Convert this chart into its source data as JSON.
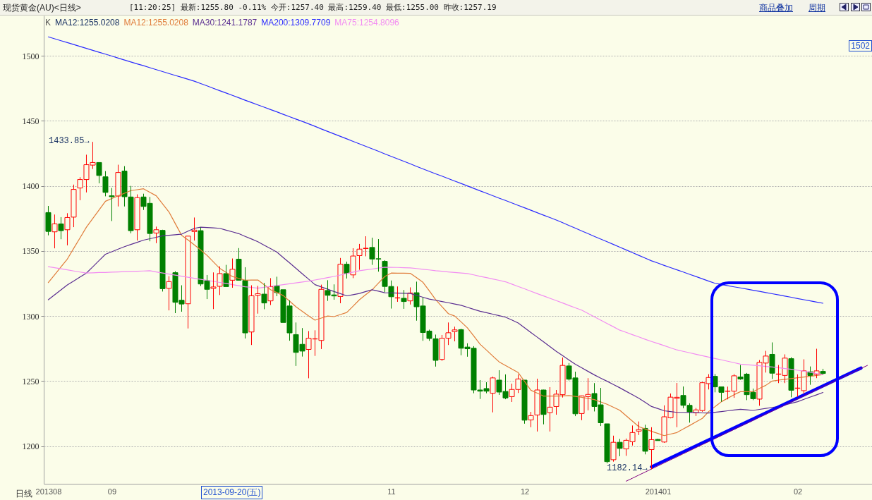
{
  "chart_data": {
    "type": "candlestick",
    "title": "现货黄金(AU)<日线>",
    "subtitle": "[11:20:25] 最新:1255.80 -0.11% 今开:1257.40 最高:1259.40 最低:1255.00 昨收:1257.19",
    "categories": [
      "201308",
      null,
      null,
      null,
      null,
      null,
      null,
      null,
      null,
      null,
      "09",
      null,
      null,
      null,
      null,
      null,
      null,
      null,
      null,
      null,
      null,
      null,
      null,
      null,
      null,
      null,
      null,
      null,
      null,
      null,
      null,
      null,
      null,
      null,
      null,
      null,
      null,
      null,
      null,
      null,
      null,
      null,
      null,
      null,
      null,
      null,
      null,
      null,
      null,
      null,
      null,
      null,
      null,
      null,
      "11",
      null,
      null,
      null,
      null,
      null,
      null,
      null,
      null,
      null,
      null,
      null,
      null,
      null,
      null,
      null,
      null,
      null,
      null,
      null,
      null,
      "12",
      null,
      null,
      null,
      null,
      null,
      null,
      null,
      null,
      null,
      null,
      null,
      null,
      null,
      null,
      null,
      null,
      null,
      null,
      null,
      null,
      "201401",
      null,
      null,
      null,
      null,
      null,
      null,
      null,
      null,
      null,
      null,
      null,
      null,
      null,
      null,
      null,
      null,
      null,
      null,
      null,
      null,
      null,
      "02",
      null,
      null,
      null,
      null,
      null,
      null,
      null,
      null,
      null,
      null,
      null
    ],
    "ohlc": [
      [
        1379.5,
        1384.6,
        1362,
        1365
      ],
      [
        1364.7,
        1378,
        1352,
        1370.8
      ],
      [
        1370.8,
        1376,
        1359,
        1365.6
      ],
      [
        1366.3,
        1379,
        1354.3,
        1375.7
      ],
      [
        1376,
        1401,
        1368.3,
        1397.3
      ],
      [
        1398.4,
        1406.7,
        1389,
        1404.9
      ],
      [
        1404.9,
        1424,
        1395,
        1416.3
      ],
      [
        1416,
        1433.85,
        1413,
        1418
      ],
      [
        1418,
        1418,
        1402,
        1408
      ],
      [
        1407,
        1411.4,
        1392,
        1395
      ],
      [
        1392.4,
        1398.4,
        1373,
        1391.7
      ],
      [
        1392.2,
        1416.3,
        1384.2,
        1410.3
      ],
      [
        1411.4,
        1415.2,
        1384.2,
        1391.7
      ],
      [
        1391.5,
        1400,
        1363.6,
        1365.6
      ],
      [
        1366.3,
        1393.5,
        1358,
        1391
      ],
      [
        1391.5,
        1394,
        1381.5,
        1384.2
      ],
      [
        1386.6,
        1391.5,
        1357.4,
        1363.4
      ],
      [
        1363.8,
        1368.7,
        1356,
        1366.3
      ],
      [
        1365.8,
        1366.3,
        1318.8,
        1321
      ],
      [
        1321.2,
        1330.6,
        1304.3,
        1326.4
      ],
      [
        1333.3,
        1334.4,
        1302.2,
        1310.5
      ],
      [
        1312.1,
        1323.6,
        1303.3,
        1309.2
      ],
      [
        1309.4,
        1361.4,
        1290.4,
        1361.4
      ],
      [
        1364.9,
        1375.7,
        1358,
        1366
      ],
      [
        1365.6,
        1368,
        1323,
        1324.6
      ],
      [
        1327.2,
        1331.5,
        1313,
        1320.5
      ],
      [
        1321.2,
        1333.5,
        1305.3,
        1322.3
      ],
      [
        1322.8,
        1338.2,
        1316.1,
        1332.6
      ],
      [
        1332.6,
        1339.3,
        1322.6,
        1322.6
      ],
      [
        1327.5,
        1344.2,
        1321.7,
        1335.9
      ],
      [
        1343.7,
        1352.2,
        1327.5,
        1327.5
      ],
      [
        1327.3,
        1337.5,
        1282.7,
        1287
      ],
      [
        1287.7,
        1323.6,
        1277.7,
        1315.5
      ],
      [
        1315.9,
        1323.2,
        1301.8,
        1317.1
      ],
      [
        1316.8,
        1325.4,
        1305.2,
        1310
      ],
      [
        1311.6,
        1329.1,
        1308.4,
        1322.5
      ],
      [
        1323.2,
        1330.2,
        1315.2,
        1318
      ],
      [
        1320.2,
        1320.2,
        1295,
        1295
      ],
      [
        1307.7,
        1312,
        1281,
        1287
      ],
      [
        1285.7,
        1295,
        1261.6,
        1272
      ],
      [
        1278.2,
        1290.7,
        1268.8,
        1273
      ],
      [
        1274.3,
        1288.4,
        1252.1,
        1282.9
      ],
      [
        1282.3,
        1289,
        1269.3,
        1282.5
      ],
      [
        1281.2,
        1324.1,
        1274.6,
        1320.5
      ],
      [
        1319.6,
        1327.5,
        1311.6,
        1315.9
      ],
      [
        1316.2,
        1324.3,
        1312.5,
        1315.4
      ],
      [
        1315,
        1344.6,
        1309.8,
        1339.8
      ],
      [
        1339.8,
        1341.8,
        1328.8,
        1332.9
      ],
      [
        1331.6,
        1352.1,
        1329.1,
        1346.1
      ],
      [
        1346.4,
        1355.4,
        1335.5,
        1351.4
      ],
      [
        1351.8,
        1361.3,
        1345.9,
        1352.1
      ],
      [
        1352.7,
        1360.2,
        1339.3,
        1343.8
      ],
      [
        1344,
        1359.1,
        1334.1,
        1343.8
      ],
      [
        1342,
        1342.9,
        1318.4,
        1322.7
      ],
      [
        1322.7,
        1327.3,
        1305.7,
        1314.8
      ],
      [
        1313.8,
        1322.7,
        1310.9,
        1314
      ],
      [
        1313.6,
        1320,
        1305.5,
        1311.1
      ],
      [
        1311.6,
        1322,
        1308.8,
        1317.7
      ],
      [
        1317.9,
        1326.4,
        1296.4,
        1307.1
      ],
      [
        1307.7,
        1314.3,
        1280.9,
        1287.3
      ],
      [
        1288.4,
        1289.5,
        1280.9,
        1282.7
      ],
      [
        1282.5,
        1285.7,
        1261.1,
        1265.9
      ],
      [
        1266.6,
        1285.4,
        1265.5,
        1282.9
      ],
      [
        1282.9,
        1295,
        1277.7,
        1287.1
      ],
      [
        1288,
        1291.8,
        1280.5,
        1289.3
      ],
      [
        1289.5,
        1290.2,
        1269.8,
        1275.2
      ],
      [
        1276.1,
        1279,
        1268.7,
        1274.8
      ],
      [
        1275.2,
        1276.8,
        1240.6,
        1243.1
      ],
      [
        1243.1,
        1250.7,
        1236.2,
        1242.2
      ],
      [
        1244.2,
        1249.1,
        1240.6,
        1242.2
      ],
      [
        1240.6,
        1253.4,
        1225.9,
        1252.4
      ],
      [
        1250.7,
        1258.3,
        1239.3,
        1241.5
      ],
      [
        1242,
        1255.1,
        1236,
        1237
      ],
      [
        1238,
        1248,
        1233.9,
        1243.5
      ],
      [
        1243.5,
        1255.1,
        1240.8,
        1251.6
      ],
      [
        1250.7,
        1250.7,
        1217.2,
        1219.9
      ],
      [
        1220.1,
        1226.3,
        1214.5,
        1223.4
      ],
      [
        1223.9,
        1251.8,
        1211.2,
        1243.1
      ],
      [
        1243.1,
        1243.3,
        1216.7,
        1224.3
      ],
      [
        1225.7,
        1245.3,
        1211.2,
        1229.9
      ],
      [
        1230.4,
        1243.1,
        1224.1,
        1239.9
      ],
      [
        1239.5,
        1268.1,
        1237.3,
        1262
      ],
      [
        1261.6,
        1263.8,
        1250.4,
        1251.4
      ],
      [
        1252.4,
        1257.2,
        1223,
        1224.8
      ],
      [
        1225,
        1238.8,
        1219.9,
        1238.6
      ],
      [
        1238,
        1252.2,
        1227.5,
        1239.7
      ],
      [
        1240.4,
        1248.4,
        1226.6,
        1230.4
      ],
      [
        1231.7,
        1244.7,
        1215.4,
        1217.9
      ],
      [
        1217.1,
        1217.1,
        1186.7,
        1188
      ],
      [
        1189.5,
        1208,
        1188,
        1202.9
      ],
      [
        1202.9,
        1205.5,
        1192.2,
        1198.2
      ],
      [
        1197.8,
        1205.8,
        1192.5,
        1204.4
      ],
      [
        1203.3,
        1215.8,
        1200.4,
        1210.4
      ],
      [
        1211.5,
        1218.9,
        1208.5,
        1212.7
      ],
      [
        1213.6,
        1216.4,
        1193.6,
        1196
      ],
      [
        1197.3,
        1214.5,
        1182.14,
        1204.9
      ],
      [
        1205.1,
        1205.6,
        1204.2,
        1204.2
      ],
      [
        1203.1,
        1231.3,
        1202.5,
        1222.5
      ],
      [
        1221.8,
        1240.4,
        1221.3,
        1237.6
      ],
      [
        1236.7,
        1248.5,
        1214.5,
        1237.5
      ],
      [
        1238.9,
        1245.8,
        1229.1,
        1231.3
      ],
      [
        1231.3,
        1232.9,
        1218,
        1226.2
      ],
      [
        1225.5,
        1229.3,
        1223.1,
        1227.8
      ],
      [
        1227.3,
        1249.3,
        1226.4,
        1248.7
      ],
      [
        1248,
        1255.3,
        1243.5,
        1252.7
      ],
      [
        1253.6,
        1255.4,
        1241.3,
        1245.5
      ],
      [
        1245.5,
        1245.5,
        1234.1,
        1241.3
      ],
      [
        1242.1,
        1245.7,
        1235.9,
        1242.3
      ],
      [
        1242.2,
        1255.3,
        1237.1,
        1254
      ],
      [
        1253.1,
        1262.3,
        1250.9,
        1251.6
      ],
      [
        1255.3,
        1256.2,
        1235.3,
        1239.5
      ],
      [
        1241.3,
        1244.2,
        1235.3,
        1236.4
      ],
      [
        1236.1,
        1266.1,
        1231,
        1264.3
      ],
      [
        1263.8,
        1273.2,
        1256.5,
        1269.2
      ],
      [
        1270.5,
        1279.7,
        1251.6,
        1256
      ],
      [
        1255.2,
        1262.3,
        1248.4,
        1255.4
      ],
      [
        1254.3,
        1270.5,
        1248.4,
        1267.6
      ],
      [
        1267.2,
        1268.3,
        1237.5,
        1242.9
      ],
      [
        1244.4,
        1255.1,
        1237.9,
        1244.6
      ],
      [
        1242.6,
        1266.7,
        1240.2,
        1257.8
      ],
      [
        1257.1,
        1261.2,
        1247.1,
        1254.2
      ],
      [
        1255.1,
        1274.8,
        1252.2,
        1257.8
      ],
      [
        1257.4,
        1259.4,
        1255,
        1255.8
      ],
      null,
      null,
      null,
      null,
      null,
      null,
      null
    ],
    "colors": [
      "#008000",
      "#ff0000",
      "#008000",
      "#ff0000",
      "#ff0000",
      "#ff0000",
      "#ff0000",
      "#ff0000",
      "#008000",
      "#008000",
      "#008000",
      "#ff0000",
      "#008000",
      "#008000",
      "#ff0000",
      "#008000",
      "#008000",
      "#ff0000",
      "#008000",
      "#ff0000",
      "#008000",
      "#008000",
      "#ff0000",
      "#ff0000",
      "#008000",
      "#008000",
      "#ff0000",
      "#ff0000",
      "#008000",
      "#ff0000",
      "#008000",
      "#008000",
      "#ff0000",
      "#ff0000",
      "#008000",
      "#ff0000",
      "#008000",
      "#008000",
      "#008000",
      "#008000",
      "#008000",
      "#ff0000",
      "#ff0000",
      "#ff0000",
      "#008000",
      "#008000",
      "#ff0000",
      "#008000",
      "#ff0000",
      "#ff0000",
      "#ff0000",
      "#008000",
      "#008000",
      "#008000",
      "#008000",
      "#ff0000",
      "#008000",
      "#ff0000",
      "#008000",
      "#008000",
      "#008000",
      "#008000",
      "#ff0000",
      "#ff0000",
      "#ff0000",
      "#008000",
      "#008000",
      "#008000",
      "#008000",
      "#008000",
      "#ff0000",
      "#008000",
      "#008000",
      "#ff0000",
      "#ff0000",
      "#008000",
      "#ff0000",
      "#ff0000",
      "#008000",
      "#ff0000",
      "#ff0000",
      "#ff0000",
      "#008000",
      "#008000",
      "#ff0000",
      "#ff0000",
      "#008000",
      "#008000",
      "#008000",
      "#ff0000",
      "#008000",
      "#ff0000",
      "#ff0000",
      "#ff0000",
      "#008000",
      "#ff0000",
      "#008000",
      "#ff0000",
      "#ff0000",
      "#ff0000",
      "#008000",
      "#008000",
      "#ff0000",
      "#ff0000",
      "#ff0000",
      "#008000",
      "#008000",
      "#ff0000",
      "#ff0000",
      "#008000",
      "#008000",
      "#008000",
      "#ff0000",
      "#ff0000",
      "#008000",
      "#ff0000",
      "#ff0000",
      "#008000",
      "#ff0000",
      "#ff0000",
      "#008000",
      "#ff0000",
      "#008000",
      null,
      null,
      null,
      null,
      null,
      null,
      null
    ],
    "series": [
      {
        "type": "line",
        "name": "MA12:1255.0208",
        "color": "#e07b39",
        "values": [
          1325.7,
          1331.7,
          1337.8,
          1343.8,
          1352,
          1360.1,
          1368.3,
          1374.9,
          1381.6,
          1388.2,
          1390.3,
          1392.4,
          1394.4,
          1396.4,
          1397.1,
          1397.8,
          1395.1,
          1392.4,
          1386.2,
          1380,
          1371,
          1362,
          1358.4,
          1354.7,
          1350.7,
          1346.6,
          1341.6,
          1336.6,
          1333.5,
          1330.3,
          1328.9,
          1327.5,
          1327.6,
          1327.7,
          1324,
          1320.2,
          1318,
          1315.7,
          1311.4,
          1307.1,
          1303.6,
          1300,
          1296.8,
          1298.4,
          1300,
          1299.5,
          1301.1,
          1302.7,
          1307.6,
          1312.5,
          1316.4,
          1320.2,
          1325.3,
          1330.4,
          1333,
          1332.9,
          1332.9,
          1332.8,
          1329.4,
          1325.9,
          1319.3,
          1312.6,
          1307.2,
          1301.8,
          1300,
          1295.5,
          1290.9,
          1284.6,
          1278.3,
          1273.8,
          1269.2,
          1264.7,
          1262,
          1259.2,
          1256.5,
          1249.7,
          1242.9,
          1240.7,
          1238.4,
          1238.4,
          1238.4,
          1238.6,
          1238.8,
          1238.2,
          1237.5,
          1236.6,
          1235.7,
          1233.9,
          1232.1,
          1229.8,
          1227.5,
          1223.3,
          1219.1,
          1214.9,
          1213.1,
          1211.3,
          1209.7,
          1208,
          1209.2,
          1210.4,
          1213.1,
          1215.8,
          1218.6,
          1221.3,
          1226.5,
          1230.3,
          1234.1,
          1236.8,
          1239.5,
          1241.8,
          1241.8,
          1241.8,
          1244.3,
          1246.7,
          1250,
          1250.7,
          1251.3,
          1251.9,
          1252.5,
          1253.1,
          1253.6,
          1254.3,
          1255.0,
          null,
          null,
          null,
          null,
          null,
          null,
          null
        ]
      },
      {
        "type": "line",
        "name": "MA30:1241.1787",
        "color": "#5a2d91",
        "values": [
          1312.5,
          1316.3,
          1320.1,
          1323.9,
          1326.9,
          1330,
          1333,
          1337.8,
          1342.7,
          1347.5,
          1349.4,
          1351.4,
          1353.3,
          1355,
          1356.6,
          1358.3,
          1359.4,
          1360.5,
          1361.6,
          1362,
          1362.5,
          1362.9,
          1365.2,
          1367.4,
          1368.3,
          1368,
          1367.7,
          1367.4,
          1366,
          1364.7,
          1363.3,
          1361.2,
          1359.2,
          1357.1,
          1354.4,
          1351.8,
          1349.1,
          1344.9,
          1340.8,
          1336.6,
          1332.4,
          1328.3,
          1324.1,
          1322.3,
          1320.6,
          1318.8,
          1317.2,
          1315.5,
          1316.4,
          1317.3,
          1318.8,
          1320.2,
          1319.1,
          1317.9,
          1317.8,
          1317.6,
          1317.5,
          1317.3,
          1315.9,
          1314.4,
          1313,
          1312.1,
          1311.1,
          1310.2,
          1309.2,
          1308.2,
          1306.7,
          1305.1,
          1303.6,
          1302.5,
          1301.4,
          1300.2,
          1299.1,
          1296.9,
          1294.6,
          1291,
          1287.3,
          1283.7,
          1280.1,
          1276.4,
          1272.8,
          1269.5,
          1266.2,
          1262.9,
          1260.2,
          1257.4,
          1254.7,
          1252.2,
          1249.8,
          1247.3,
          1244.8,
          1242.1,
          1239.4,
          1236.7,
          1233.6,
          1230.4,
          1228.8,
          1227.1,
          1226.5,
          1225.9,
          1225.9,
          1225.8,
          1225.7,
          1225.5,
          1225.4,
          1226,
          1226.5,
          1227.1,
          1227.7,
          1228.3,
          1227.9,
          1227.4,
          1228.2,
          1228.9,
          1229.7,
          1230.4,
          1231.6,
          1232.9,
          1234.1,
          1235.9,
          1237.7,
          1239.4,
          1241.2,
          null,
          null,
          null,
          null,
          null,
          null,
          null
        ]
      },
      {
        "type": "line",
        "name": "MA200:1309.7709",
        "color": "#2b2bff",
        "values": [
          1514.6,
          1513.1,
          1511.6,
          1510.2,
          1508.7,
          1507.2,
          1505.7,
          1504.2,
          1502.7,
          1501.3,
          1499.8,
          1498.3,
          1496.8,
          1495.3,
          1493.8,
          1492.4,
          1490.9,
          1489.4,
          1487.9,
          1486.4,
          1484.9,
          1483.5,
          1482,
          1480.5,
          1478.7,
          1476.9,
          1475,
          1473.2,
          1471.4,
          1469.6,
          1467.8,
          1465.9,
          1464.1,
          1462.3,
          1460.5,
          1458.7,
          1456.9,
          1455,
          1453.2,
          1451.4,
          1449.6,
          1447.7,
          1445.8,
          1443.8,
          1441.9,
          1440,
          1438.1,
          1436.2,
          1434.2,
          1432.3,
          1430.4,
          1428.5,
          1426.6,
          1424.6,
          1422.7,
          1420.8,
          1418.9,
          1417,
          1415,
          1413.1,
          1411.2,
          1409.3,
          1407.5,
          1405.6,
          1403.7,
          1401.9,
          1400,
          1398.1,
          1396.2,
          1394.4,
          1392.5,
          1390.6,
          1388.8,
          1386.9,
          1385,
          1383.2,
          1381.3,
          1379.4,
          1377.5,
          1375.7,
          1373.8,
          1371.7,
          1369.6,
          1367.5,
          1365.4,
          1363.3,
          1361.2,
          1359.1,
          1357.1,
          1355,
          1352.9,
          1350.8,
          1348.7,
          1346.6,
          1344.5,
          1342.4,
          1340.7,
          1338.9,
          1337.2,
          1335.5,
          1333.8,
          1332,
          1330.3,
          1328.6,
          1326.8,
          1325.1,
          1324.2,
          1323.3,
          1322.4,
          1321.6,
          1320.7,
          1319.8,
          1318.9,
          1318,
          1317.1,
          1316.2,
          1315.3,
          1314.4,
          1313.4,
          1312.5,
          1311.6,
          1310.7,
          1309.8,
          null,
          null,
          null,
          null,
          null,
          null,
          null
        ]
      },
      {
        "type": "line",
        "name": "MA75:1254.8096",
        "color": "#f28cf2",
        "values": [
          1337.9,
          1337.1,
          1336.3,
          1335.5,
          1334.6,
          1333.8,
          1333,
          1333.2,
          1333.4,
          1333.5,
          1333.7,
          1333.9,
          1334.1,
          1334.3,
          1334.4,
          1334.6,
          1334.8,
          1333.9,
          1333,
          1332.2,
          1331.4,
          1330.6,
          1329.8,
          1329,
          1328.2,
          1327.4,
          1326.6,
          1325.8,
          1325,
          1324.1,
          1323.3,
          1322.5,
          1322,
          1321.4,
          1322.1,
          1322.8,
          1323.4,
          1324.1,
          1324.8,
          1325.5,
          1326.1,
          1326.8,
          1327.7,
          1328.6,
          1329.5,
          1330.4,
          1331.5,
          1332.6,
          1333.7,
          1334.8,
          1335.5,
          1336.1,
          1336.8,
          1337.5,
          1337.4,
          1337.3,
          1337.1,
          1337,
          1336.5,
          1335.9,
          1335.4,
          1334.8,
          1334.4,
          1333.9,
          1333.5,
          1333,
          1332.6,
          1331.6,
          1330.5,
          1329.5,
          1328.4,
          1327.4,
          1326.3,
          1324.5,
          1322.7,
          1320.9,
          1319,
          1317.2,
          1315.4,
          1313.6,
          1311.8,
          1310,
          1308.1,
          1306.3,
          1304.5,
          1301.9,
          1299.4,
          1296.8,
          1294.2,
          1291.7,
          1289.1,
          1287.4,
          1285.6,
          1283.9,
          1282.1,
          1280.4,
          1278.8,
          1277.2,
          1275.5,
          1273.9,
          1272.8,
          1271.7,
          1270.6,
          1269.5,
          1268.4,
          1267.3,
          1266.3,
          1265.2,
          1264.1,
          1263,
          1262.6,
          1262.1,
          1261.7,
          1261.2,
          1260.8,
          1260.3,
          1259.6,
          1259,
          1258.3,
          1257.6,
          1256.7,
          1255.7,
          1254.8,
          null,
          null,
          null,
          null,
          null,
          null,
          null
        ]
      },
      {
        "type": "line",
        "color": "#0000ff",
        "values": [
          null,
          null,
          null,
          null,
          null,
          null,
          null,
          null,
          null,
          null,
          null,
          null,
          null,
          null,
          null,
          null,
          null,
          null,
          null,
          null,
          null,
          null,
          null,
          null,
          null,
          null,
          null,
          null,
          null,
          null,
          null,
          null,
          null,
          null,
          null,
          null,
          null,
          null,
          null,
          null,
          null,
          null,
          null,
          null,
          null,
          null,
          null,
          null,
          null,
          null,
          null,
          null,
          null,
          null,
          null,
          null,
          null,
          null,
          null,
          null,
          null,
          null,
          null,
          null,
          null,
          null,
          null,
          null,
          null,
          null,
          null,
          null,
          null,
          null,
          null,
          null,
          null,
          null,
          null,
          null,
          null,
          null,
          null,
          null,
          null,
          null,
          null,
          null,
          null,
          null,
          null,
          null,
          null,
          null,
          null,
          1184,
          1186.3,
          1188.6,
          1190.9,
          1193.2,
          1195.5,
          1197.8,
          1200.1,
          1202.4,
          1204.7,
          1207,
          1209.3,
          1211.6,
          1213.9,
          1216.2,
          1218.5,
          1220.8,
          1223.2,
          1225.5,
          1227.8,
          1230.1,
          1232.4,
          1234.7,
          1237,
          1239.3,
          1241.6,
          1243.9,
          1246.2,
          1248.5,
          1250.8,
          1253.1,
          1255.4,
          1257.7,
          1260,
          null
        ]
      },
      {
        "type": "line",
        "color": "#800080",
        "values": [
          null,
          null,
          null,
          null,
          null,
          null,
          null,
          null,
          null,
          null,
          null,
          null,
          null,
          null,
          null,
          null,
          null,
          null,
          null,
          null,
          null,
          null,
          null,
          null,
          null,
          null,
          null,
          null,
          null,
          null,
          null,
          null,
          null,
          null,
          null,
          null,
          null,
          null,
          null,
          null,
          null,
          null,
          null,
          null,
          null,
          null,
          null,
          null,
          null,
          null,
          null,
          null,
          null,
          null,
          null,
          null,
          null,
          null,
          null,
          null,
          null,
          null,
          null,
          null,
          null,
          null,
          null,
          null,
          null,
          null,
          null,
          null,
          null,
          null,
          null,
          null,
          null,
          null,
          null,
          null,
          null,
          null,
          null,
          null,
          null,
          null,
          null,
          null,
          null,
          null,
          null,
          1173,
          1175.3,
          1177.7,
          1180,
          1182.4,
          1184.7,
          1187.1,
          1189.4,
          1191.7,
          1194.1,
          1196.4,
          1198.8,
          1201.1,
          1203.4,
          1205.8,
          1208.1,
          1210.5,
          1212.8,
          1215.2,
          1217.5,
          1219.8,
          1222.2,
          1224.5,
          1226.9,
          1229.2,
          1231.5,
          1233.9,
          1236.2,
          1238.6,
          1240.9,
          1243.3,
          1245.6,
          1247.9,
          1250.3,
          1252.6,
          1255,
          1257.3,
          1259.7,
          1262
        ]
      }
    ],
    "ylim": [
      1171,
      1531
    ],
    "yticks": [
      1200,
      1250,
      1300,
      1350,
      1400,
      1450,
      1500
    ],
    "grid": "y",
    "legend": "top left",
    "annotations": [
      "K",
      "MA12:1255.0208",
      "商品叠加",
      "周期",
      "1502",
      "2013-09-20(五)",
      "日线",
      "1433.85→",
      "1182.14→"
    ]
  }
}
